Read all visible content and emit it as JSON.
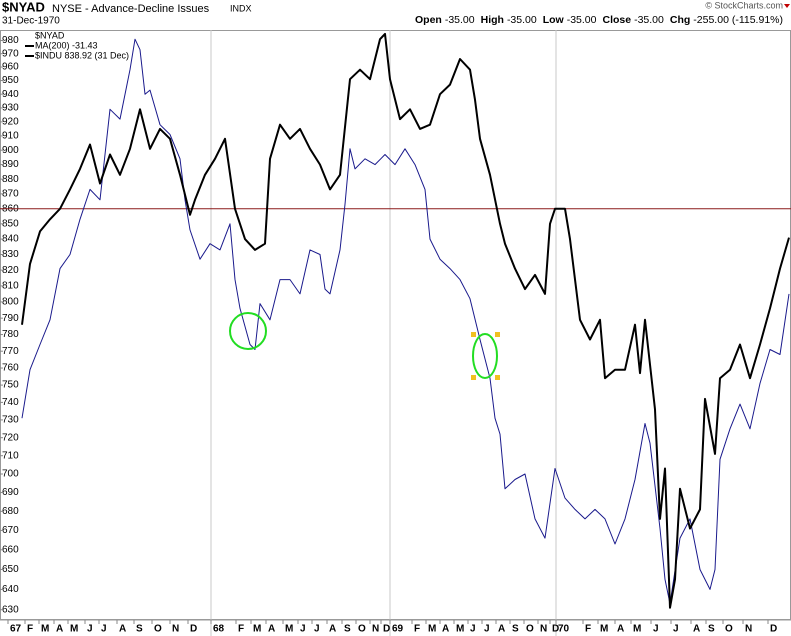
{
  "chart_data": {
    "type": "line",
    "title": "$NYAD",
    "subtitle": "NYSE - Advance-Decline Issues",
    "exchange": "INDX",
    "date": "31-Dec-1970",
    "copyright": "© StockCharts.com",
    "quote": [
      {
        "label": "Open",
        "value": "-35.00"
      },
      {
        "label": "High",
        "value": "-35.00"
      },
      {
        "label": "Low",
        "value": "-35.00"
      },
      {
        "label": "Close",
        "value": "-35.00"
      },
      {
        "label": "Chg",
        "value": "-255.00 (-115.91%)"
      }
    ],
    "ma_label": "MA(200) -31.43",
    "log_scale": true,
    "grid": false,
    "legend": "top-left",
    "ylim": [
      625,
      988
    ],
    "yticks": [
      630,
      640,
      650,
      660,
      670,
      680,
      690,
      700,
      710,
      720,
      730,
      740,
      750,
      760,
      770,
      780,
      790,
      800,
      810,
      820,
      830,
      840,
      850,
      860,
      870,
      880,
      890,
      900,
      910,
      920,
      930,
      940,
      950,
      960,
      970,
      980
    ],
    "xlim": [
      0,
      791
    ],
    "xticks": [
      {
        "value": 8,
        "label": "67"
      },
      {
        "value": 25,
        "label": "F"
      },
      {
        "value": 39,
        "label": "M"
      },
      {
        "value": 54,
        "label": "A"
      },
      {
        "value": 68,
        "label": "M"
      },
      {
        "value": 85,
        "label": "J"
      },
      {
        "value": 99,
        "label": "J"
      },
      {
        "value": 117,
        "label": "A"
      },
      {
        "value": 134,
        "label": "S"
      },
      {
        "value": 152,
        "label": "O"
      },
      {
        "value": 170,
        "label": "N"
      },
      {
        "value": 188,
        "label": "D"
      },
      {
        "value": 211,
        "label": "68"
      },
      {
        "value": 236,
        "label": "F"
      },
      {
        "value": 251,
        "label": "M"
      },
      {
        "value": 266,
        "label": "A"
      },
      {
        "value": 283,
        "label": "M"
      },
      {
        "value": 298,
        "label": "J"
      },
      {
        "value": 312,
        "label": "J"
      },
      {
        "value": 327,
        "label": "A"
      },
      {
        "value": 342,
        "label": "S"
      },
      {
        "value": 356,
        "label": "O"
      },
      {
        "value": 370,
        "label": "N"
      },
      {
        "value": 381,
        "label": "D"
      },
      {
        "value": 390,
        "label": "69"
      },
      {
        "value": 412,
        "label": "F"
      },
      {
        "value": 426,
        "label": "M"
      },
      {
        "value": 440,
        "label": "A"
      },
      {
        "value": 454,
        "label": "M"
      },
      {
        "value": 468,
        "label": "J"
      },
      {
        "value": 482,
        "label": "J"
      },
      {
        "value": 496,
        "label": "A"
      },
      {
        "value": 510,
        "label": "S"
      },
      {
        "value": 524,
        "label": "O"
      },
      {
        "value": 538,
        "label": "N"
      },
      {
        "value": 550,
        "label": "D"
      },
      {
        "value": 556,
        "label": "70"
      },
      {
        "value": 583,
        "label": "F"
      },
      {
        "value": 598,
        "label": "M"
      },
      {
        "value": 615,
        "label": "A"
      },
      {
        "value": 631,
        "label": "M"
      },
      {
        "value": 651,
        "label": "J"
      },
      {
        "value": 671,
        "label": "J"
      },
      {
        "value": 691,
        "label": "A"
      },
      {
        "value": 706,
        "label": "S"
      },
      {
        "value": 723,
        "label": "O"
      },
      {
        "value": 743,
        "label": "N"
      },
      {
        "value": 768,
        "label": "D"
      }
    ],
    "year_lines": [
      211,
      390,
      556
    ],
    "hlines": [
      {
        "value": 860,
        "color": "#8b1a1a"
      }
    ],
    "series": [
      {
        "name": "$NYAD",
        "color": "#1a1a8c",
        "width": 1,
        "x": [
          22,
          30,
          40,
          50,
          60,
          70,
          80,
          90,
          100,
          110,
          120,
          130,
          135,
          140,
          145,
          150,
          160,
          170,
          180,
          185,
          190,
          200,
          210,
          220,
          230,
          235,
          240,
          250,
          255,
          260,
          270,
          280,
          290,
          300,
          310,
          320,
          325,
          330,
          340,
          345,
          350,
          355,
          365,
          375,
          385,
          395,
          405,
          415,
          425,
          430,
          440,
          450,
          460,
          470,
          480,
          490,
          495,
          500,
          505,
          515,
          525,
          535,
          545,
          555,
          565,
          575,
          585,
          595,
          605,
          615,
          625,
          635,
          645,
          650,
          660,
          665,
          670,
          680,
          690,
          700,
          710,
          715,
          720,
          730,
          740,
          750,
          760,
          770,
          780,
          789
        ],
        "values": [
          731,
          759,
          774,
          789,
          821,
          830,
          853,
          873,
          866,
          929,
          922,
          958,
          981,
          973,
          940,
          943,
          918,
          911,
          894,
          866,
          846,
          827,
          837,
          833,
          850,
          814,
          796,
          774,
          771,
          799,
          789,
          814,
          814,
          805,
          833,
          830,
          808,
          805,
          833,
          863,
          901,
          887,
          894,
          890,
          897,
          890,
          901,
          890,
          873,
          840,
          827,
          821,
          814,
          802,
          777,
          754,
          731,
          722,
          692,
          697,
          700,
          676,
          666,
          703,
          687,
          681,
          676,
          681,
          676,
          663,
          676,
          697,
          728,
          717,
          671,
          645,
          633,
          666,
          676,
          650,
          640,
          650,
          708,
          725,
          739,
          725,
          751,
          771,
          768,
          805
        ]
      },
      {
        "name": "$INDU 838.92 (31 Dec)",
        "color": "#000000",
        "width": 2,
        "x": [
          22,
          30,
          40,
          50,
          60,
          70,
          80,
          90,
          100,
          110,
          120,
          130,
          140,
          150,
          160,
          170,
          180,
          190,
          195,
          205,
          215,
          225,
          235,
          245,
          255,
          265,
          270,
          280,
          290,
          300,
          310,
          320,
          330,
          340,
          350,
          360,
          370,
          380,
          385,
          390,
          400,
          410,
          420,
          430,
          440,
          450,
          460,
          470,
          475,
          480,
          490,
          500,
          505,
          515,
          525,
          535,
          545,
          550,
          555,
          565,
          570,
          580,
          590,
          600,
          605,
          615,
          625,
          635,
          640,
          645,
          655,
          660,
          665,
          670,
          675,
          680,
          690,
          700,
          705,
          715,
          720,
          730,
          740,
          750,
          760,
          770,
          780,
          789
        ],
        "values": [
          786,
          824,
          845,
          853,
          860,
          873,
          887,
          904,
          877,
          897,
          883,
          901,
          929,
          901,
          915,
          908,
          883,
          856,
          866,
          883,
          894,
          908,
          860,
          840,
          833,
          837,
          894,
          918,
          908,
          915,
          901,
          890,
          873,
          883,
          951,
          958,
          951,
          981,
          985,
          951,
          922,
          929,
          915,
          918,
          940,
          947,
          966,
          958,
          936,
          908,
          883,
          850,
          837,
          821,
          808,
          817,
          805,
          850,
          860,
          860,
          840,
          789,
          777,
          789,
          754,
          759,
          759,
          786,
          757,
          789,
          736,
          676,
          703,
          631,
          645,
          692,
          671,
          681,
          742,
          711,
          754,
          759,
          774,
          754,
          774,
          796,
          821,
          841
        ]
      }
    ]
  }
}
